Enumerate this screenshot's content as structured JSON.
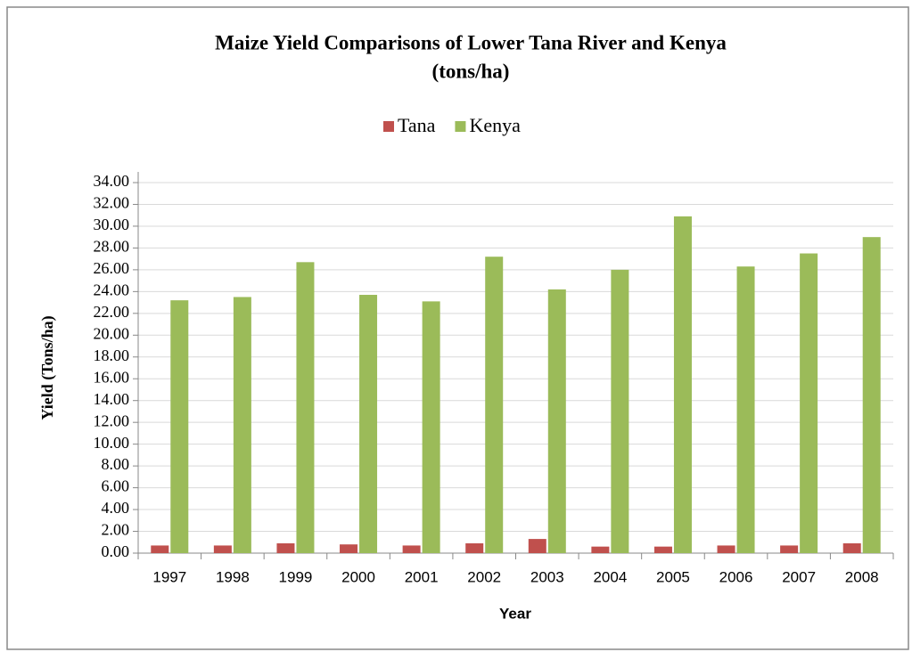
{
  "chart_data": {
    "type": "bar",
    "title": "Maize Yield Comparisons of Lower Tana River and Kenya",
    "subtitle": "(tons/ha)",
    "x_label": "Year",
    "y_label": "Yield  (Tons/ha)",
    "categories": [
      "1997",
      "1998",
      "1999",
      "2000",
      "2001",
      "2002",
      "2003",
      "2004",
      "2005",
      "2006",
      "2007",
      "2008"
    ],
    "series": [
      {
        "name": "Tana",
        "color": "#c0504d",
        "values": [
          0.7,
          0.7,
          0.9,
          0.8,
          0.7,
          0.9,
          1.3,
          0.6,
          0.6,
          0.7,
          0.7,
          0.9
        ]
      },
      {
        "name": "Kenya",
        "color": "#9bbb59",
        "values": [
          23.2,
          23.5,
          26.7,
          23.7,
          23.1,
          27.2,
          24.2,
          26.0,
          30.9,
          26.3,
          27.5,
          29.0
        ]
      }
    ],
    "ylim": [
      0,
      34
    ],
    "yticks": [
      {
        "value": 0,
        "label": "0.00"
      },
      {
        "value": 2,
        "label": "2.00"
      },
      {
        "value": 4,
        "label": "4.00"
      },
      {
        "value": 6,
        "label": "6.00"
      },
      {
        "value": 8,
        "label": "8.00"
      },
      {
        "value": 10,
        "label": "10.00"
      },
      {
        "value": 12,
        "label": "12.00"
      },
      {
        "value": 14,
        "label": "14.00"
      },
      {
        "value": 16,
        "label": "16.00"
      },
      {
        "value": 18,
        "label": "18.00"
      },
      {
        "value": 20,
        "label": "20.00"
      },
      {
        "value": 22,
        "label": "22.00"
      },
      {
        "value": 24,
        "label": "24.00"
      },
      {
        "value": 26,
        "label": "26.00"
      },
      {
        "value": 28,
        "label": "28.00"
      },
      {
        "value": 30,
        "label": "30.00"
      },
      {
        "value": 32,
        "label": "32.00"
      },
      {
        "value": 34,
        "label": "34.00"
      }
    ],
    "grid": true,
    "legend": "top"
  }
}
